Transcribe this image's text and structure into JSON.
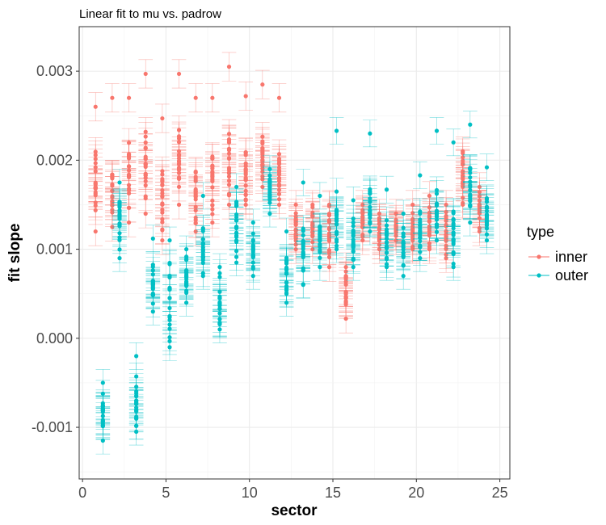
{
  "chart_data": {
    "type": "scatter",
    "title": "Linear fit to mu vs. padrow",
    "xlabel": "sector",
    "ylabel": "fit slope",
    "xlim": [
      -0.2,
      25.6
    ],
    "ylim": [
      -0.00158,
      0.0035
    ],
    "x_ticks": [
      0,
      5,
      10,
      15,
      20,
      25
    ],
    "y_ticks": [
      -0.001,
      0.0,
      0.001,
      0.002,
      0.003
    ],
    "y_tick_labels": [
      "-0.001",
      "0.000",
      "0.001",
      "0.002",
      "0.003"
    ],
    "grid": true,
    "legend": {
      "title": "type",
      "position": "right"
    },
    "series": [
      {
        "name": "inner",
        "color": "#F8766D",
        "sectors": [
          {
            "x": 1,
            "min": 0.0012,
            "max": 0.0022,
            "top": 0.0026,
            "err": 0.00016
          },
          {
            "x": 2,
            "min": 0.00125,
            "max": 0.0021,
            "top": 0.0027,
            "err": 0.00016
          },
          {
            "x": 3,
            "min": 0.0013,
            "max": 0.0023,
            "top": 0.0027,
            "err": 0.00016
          },
          {
            "x": 4,
            "min": 0.0014,
            "max": 0.0025,
            "top": 0.00297,
            "err": 0.00016
          },
          {
            "x": 5,
            "min": 0.0011,
            "max": 0.0021,
            "top": 0.00247,
            "err": 0.00016
          },
          {
            "x": 6,
            "min": 0.0015,
            "max": 0.0024,
            "top": 0.00297,
            "err": 0.00016
          },
          {
            "x": 7,
            "min": 0.0012,
            "max": 0.002,
            "top": 0.0027,
            "err": 0.00016
          },
          {
            "x": 8,
            "min": 0.0013,
            "max": 0.0022,
            "top": 0.0027,
            "err": 0.00016
          },
          {
            "x": 9,
            "min": 0.0015,
            "max": 0.0024,
            "top": 0.00305,
            "err": 0.00016
          },
          {
            "x": 10,
            "min": 0.0015,
            "max": 0.0023,
            "top": 0.00272,
            "err": 0.00016
          },
          {
            "x": 11,
            "min": 0.0017,
            "max": 0.0023,
            "top": 0.00285,
            "err": 0.00016
          },
          {
            "x": 12,
            "min": 0.0015,
            "max": 0.0022,
            "top": 0.0027,
            "err": 0.00016
          },
          {
            "x": 13,
            "min": 0.001,
            "max": 0.0015,
            "top": 0.0015,
            "err": 0.00016
          },
          {
            "x": 14,
            "min": 0.001,
            "max": 0.0015,
            "top": 0.0015,
            "err": 0.00016
          },
          {
            "x": 15,
            "min": 0.0008,
            "max": 0.0015,
            "top": 0.0015,
            "err": 0.00016
          },
          {
            "x": 16,
            "min": 0.00022,
            "max": 0.0008,
            "top": 0.0008,
            "err": 0.00016
          },
          {
            "x": 17,
            "min": 0.0011,
            "max": 0.0015,
            "top": 0.0015,
            "err": 0.00016
          },
          {
            "x": 18,
            "min": 0.001,
            "max": 0.0014,
            "top": 0.0014,
            "err": 0.00016
          },
          {
            "x": 19,
            "min": 0.0011,
            "max": 0.0014,
            "top": 0.0014,
            "err": 0.00016
          },
          {
            "x": 20,
            "min": 0.001,
            "max": 0.0015,
            "top": 0.0015,
            "err": 0.00016
          },
          {
            "x": 21,
            "min": 0.001,
            "max": 0.0016,
            "top": 0.0016,
            "err": 0.00016
          },
          {
            "x": 22,
            "min": 0.0009,
            "max": 0.0015,
            "top": 0.0015,
            "err": 0.00016
          },
          {
            "x": 23,
            "min": 0.0015,
            "max": 0.0021,
            "top": 0.0021,
            "err": 0.00016
          },
          {
            "x": 24,
            "min": 0.0012,
            "max": 0.0017,
            "top": 0.0017,
            "err": 0.00016
          }
        ]
      },
      {
        "name": "outer",
        "color": "#00BFC4",
        "sectors": [
          {
            "x": 1,
            "min": -0.00115,
            "max": -0.00055,
            "top": -0.0005,
            "err": 0.00015
          },
          {
            "x": 2,
            "min": 0.0009,
            "max": 0.00175,
            "top": 0.00175,
            "err": 0.00015
          },
          {
            "x": 3,
            "min": -0.00105,
            "max": -0.0004,
            "top": -0.0002,
            "err": 0.00015
          },
          {
            "x": 4,
            "min": 0.0003,
            "max": 0.0009,
            "top": 0.00112,
            "err": 0.00015
          },
          {
            "x": 5,
            "min": -0.0001,
            "max": 0.001,
            "top": 0.0011,
            "err": 0.00015
          },
          {
            "x": 6,
            "min": 0.0004,
            "max": 0.001,
            "top": 0.001,
            "err": 0.00015
          },
          {
            "x": 7,
            "min": 0.0007,
            "max": 0.0013,
            "top": 0.0016,
            "err": 0.00015
          },
          {
            "x": 8,
            "min": 0.0001,
            "max": 0.0008,
            "top": 0.0008,
            "err": 0.00015
          },
          {
            "x": 9,
            "min": 0.00085,
            "max": 0.0016,
            "top": 0.0017,
            "err": 0.00015
          },
          {
            "x": 10,
            "min": 0.0007,
            "max": 0.0013,
            "top": 0.0013,
            "err": 0.00015
          },
          {
            "x": 11,
            "min": 0.0014,
            "max": 0.0019,
            "top": 0.0019,
            "err": 0.00015
          },
          {
            "x": 12,
            "min": 0.0004,
            "max": 0.001,
            "top": 0.0012,
            "err": 0.00015
          },
          {
            "x": 13,
            "min": 0.0006,
            "max": 0.0013,
            "top": 0.00175,
            "err": 0.00015
          },
          {
            "x": 14,
            "min": 0.0008,
            "max": 0.0015,
            "top": 0.0016,
            "err": 0.00015
          },
          {
            "x": 15,
            "min": 0.001,
            "max": 0.0017,
            "top": 0.00233,
            "err": 0.00015
          },
          {
            "x": 16,
            "min": 0.0008,
            "max": 0.0014,
            "top": 0.00155,
            "err": 0.00015
          },
          {
            "x": 17,
            "min": 0.0012,
            "max": 0.0017,
            "top": 0.0023,
            "err": 0.00015
          },
          {
            "x": 18,
            "min": 0.0008,
            "max": 0.0014,
            "top": 0.00167,
            "err": 0.00015
          },
          {
            "x": 19,
            "min": 0.0007,
            "max": 0.0013,
            "top": 0.0014,
            "err": 0.00015
          },
          {
            "x": 20,
            "min": 0.0009,
            "max": 0.0015,
            "top": 0.00183,
            "err": 0.00015
          },
          {
            "x": 21,
            "min": 0.0011,
            "max": 0.0017,
            "top": 0.00233,
            "err": 0.00015
          },
          {
            "x": 22,
            "min": 0.0008,
            "max": 0.0015,
            "top": 0.0022,
            "err": 0.00015
          },
          {
            "x": 23,
            "min": 0.0013,
            "max": 0.002,
            "top": 0.0024,
            "err": 0.00015
          },
          {
            "x": 24,
            "min": 0.0011,
            "max": 0.0017,
            "top": 0.00192,
            "err": 0.00015
          }
        ]
      }
    ]
  }
}
